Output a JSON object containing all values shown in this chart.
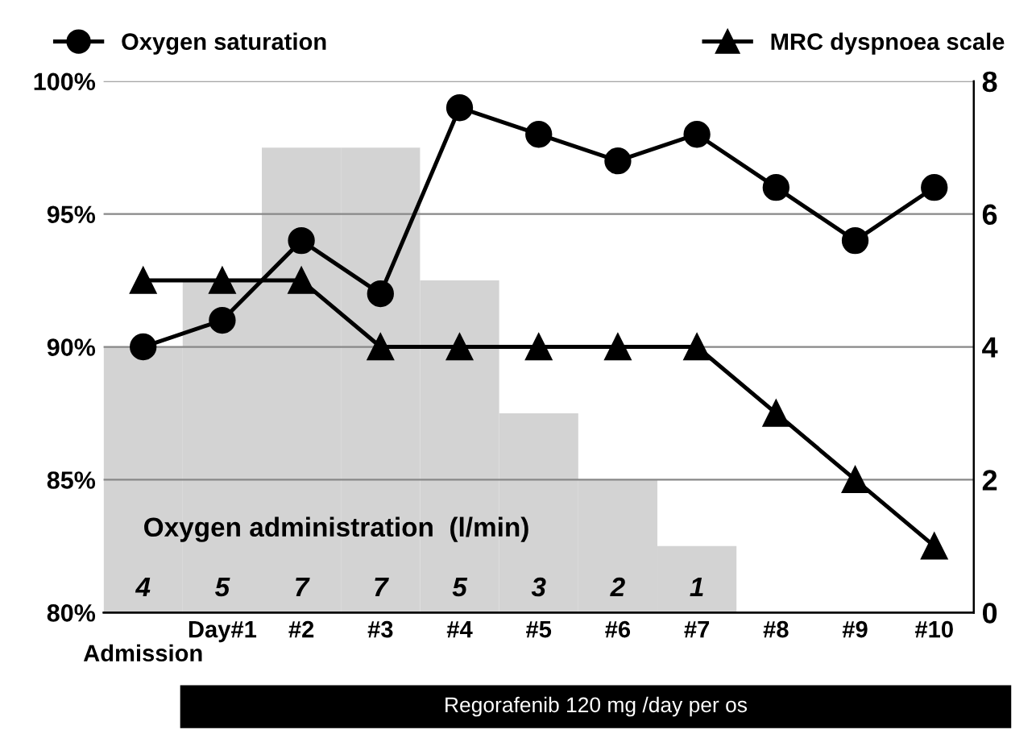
{
  "chart_data": {
    "type": "line",
    "categories": [
      "Admission",
      "Day#1",
      "#2",
      "#3",
      "#4",
      "#5",
      "#6",
      "#7",
      "#8",
      "#9",
      "#10"
    ],
    "series": [
      {
        "name": "Oxygen administration  (l/min)",
        "type": "bar",
        "axis": "y2",
        "color": "#d3d3d3",
        "values": [
          4,
          5,
          7,
          7,
          5,
          3,
          2,
          1,
          null,
          null,
          null
        ],
        "value_labels": [
          "4",
          "5",
          "7",
          "7",
          "5",
          "3",
          "2",
          "1",
          null,
          null,
          null
        ]
      },
      {
        "name": "Oxygen saturation",
        "color": "#000000",
        "marker": "circle",
        "values": [
          90,
          91,
          94,
          92,
          99,
          98,
          97,
          98,
          96,
          94,
          96
        ]
      },
      {
        "name": "MRC dyspnoea scale",
        "axis": "y2",
        "color": "#000000",
        "marker": "triangle",
        "values": [
          5,
          5,
          5,
          4,
          4,
          4,
          4,
          4,
          3,
          2,
          1
        ]
      }
    ],
    "ylim": [
      80,
      100
    ],
    "yticks": [
      {
        "value": 80,
        "label": "80%"
      },
      {
        "value": 85,
        "label": "85%"
      },
      {
        "value": 90,
        "label": "90%"
      },
      {
        "value": 95,
        "label": "95%"
      },
      {
        "value": 100,
        "label": "100%"
      }
    ],
    "y2lim": [
      0,
      8
    ],
    "y2ticks": [
      0,
      2,
      4,
      6,
      8
    ],
    "grid": "y",
    "legend": "top",
    "annotations": [
      "Regorafenib 120 mg /day per os"
    ]
  }
}
